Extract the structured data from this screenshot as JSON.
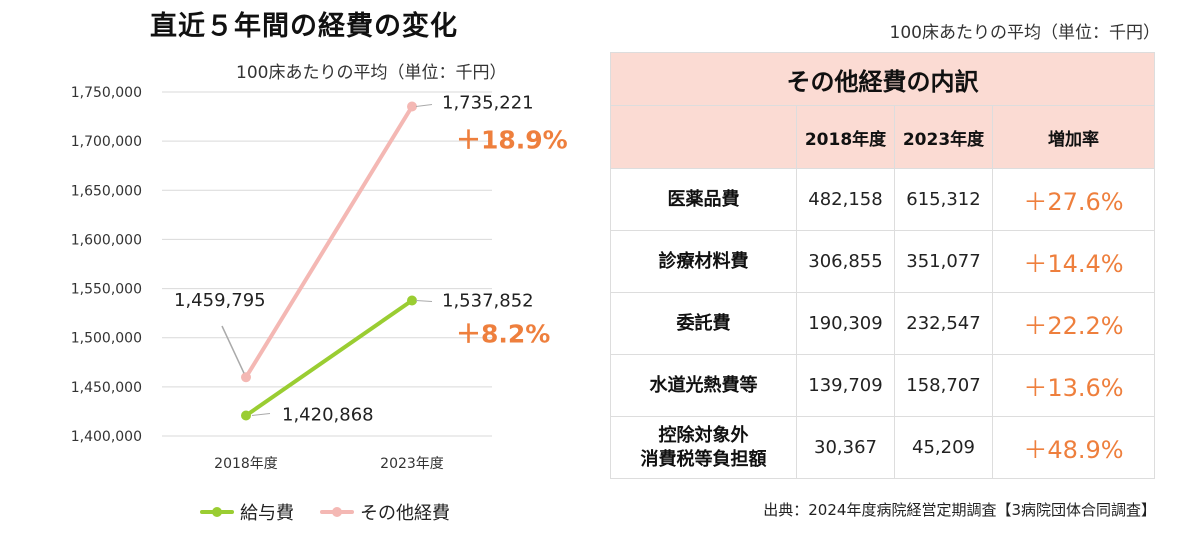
{
  "title": "直近５年間の経費の変化",
  "unit_note": "100床あたりの平均（単位：千円）",
  "chart_data": {
    "type": "line",
    "title": "直近５年間の経費の変化",
    "subtitle": "100床あたりの平均（単位：千円）",
    "x": [
      "2018年度",
      "2023年度"
    ],
    "ylim": [
      1400000,
      1750000
    ],
    "yticks": [
      1400000,
      1450000,
      1500000,
      1550000,
      1600000,
      1650000,
      1700000,
      1750000
    ],
    "ytick_labels": [
      "1,400,000",
      "1,450,000",
      "1,500,000",
      "1,550,000",
      "1,600,000",
      "1,650,000",
      "1,700,000",
      "1,750,000"
    ],
    "grid": true,
    "legend_position": "bottom",
    "series": [
      {
        "name": "給与費",
        "color": "#9acd32",
        "values": [
          1420868,
          1537852
        ],
        "value_labels": [
          "1,420,868",
          "1,537,852"
        ],
        "change_label": "＋8.2%"
      },
      {
        "name": "その他経費",
        "color": "#f4b8b4",
        "values": [
          1459795,
          1735221
        ],
        "value_labels": [
          "1,459,795",
          "1,735,221"
        ],
        "change_label": "＋18.9%"
      }
    ]
  },
  "table": {
    "caption": "その他経費の内訳",
    "headers": [
      "",
      "2018年度",
      "2023年度",
      "増加率"
    ],
    "rows": [
      {
        "item": "医薬品費",
        "v2018": "482,158",
        "v2023": "615,312",
        "rate": "＋27.6%"
      },
      {
        "item": "診療材料費",
        "v2018": "306,855",
        "v2023": "351,077",
        "rate": "＋14.4%"
      },
      {
        "item": "委託費",
        "v2018": "190,309",
        "v2023": "232,547",
        "rate": "＋22.2%"
      },
      {
        "item": "水道光熱費等",
        "v2018": "139,709",
        "v2023": "158,707",
        "rate": "＋13.6%"
      },
      {
        "item": "控除対象外\n消費税等負担額",
        "v2018": "30,367",
        "v2023": "45,209",
        "rate": "＋48.9%"
      }
    ]
  },
  "source": "出典：2024年度病院経営定期調査【3病院団体合同調査】",
  "colors": {
    "accent": "#ee7f3d",
    "header_bg": "#fbdbd3"
  }
}
